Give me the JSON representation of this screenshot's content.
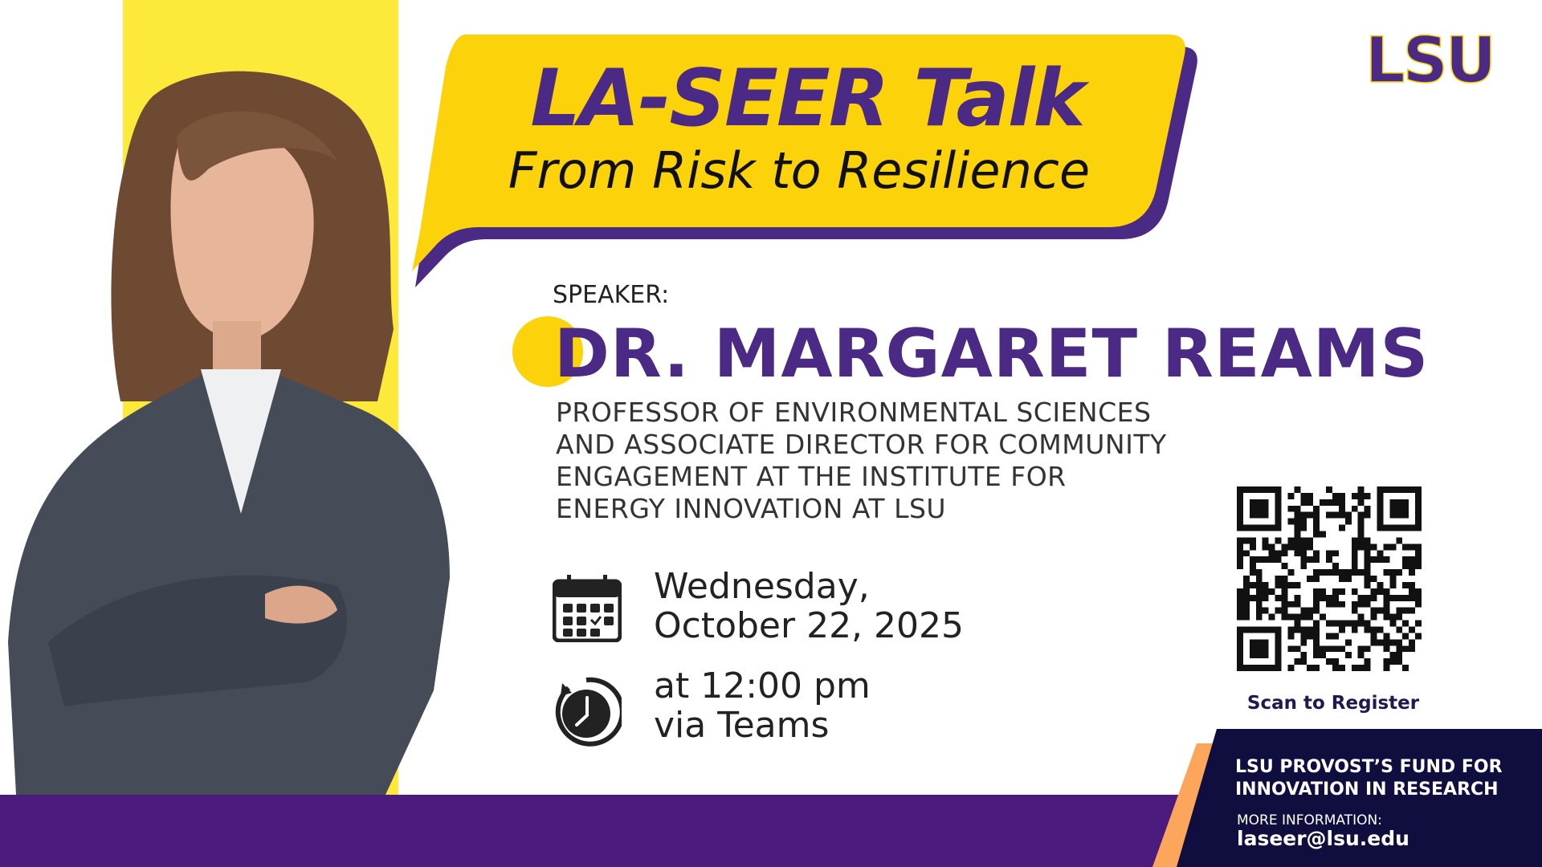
{
  "header": {
    "title": "LA-SEER Talk",
    "subtitle": "From Risk to Resilience",
    "logo_text": "LSU"
  },
  "speaker": {
    "label": "SPEAKER:",
    "name": "DR. MARGARET REAMS",
    "description_lines": [
      "PROFESSOR OF ENVIRONMENTAL SCIENCES",
      "AND ASSOCIATE DIRECTOR FOR COMMUNITY",
      "ENGAGEMENT AT THE INSTITUTE FOR",
      "ENERGY INNOVATION AT LSU"
    ]
  },
  "event": {
    "date_lines": [
      "Wednesday,",
      "October 22, 2025"
    ],
    "time_lines": [
      "at 12:00 pm",
      "via Teams"
    ],
    "date_icon": "calendar-icon",
    "time_icon": "clock-icon"
  },
  "register": {
    "label": "Scan to Register"
  },
  "footer": {
    "fund_lines": [
      "LSU PROVOST’S FUND FOR",
      "INNOVATION IN RESEARCH"
    ],
    "more_label": "MORE INFORMATION:",
    "email": "laseer@lsu.edu"
  },
  "colors": {
    "purple": "#4b2a85",
    "gold": "#fcd20a",
    "yellow_stripe": "#fde93a",
    "navy": "#0f0e3f",
    "orange": "#fba65a",
    "band": "#4b1c7d"
  }
}
